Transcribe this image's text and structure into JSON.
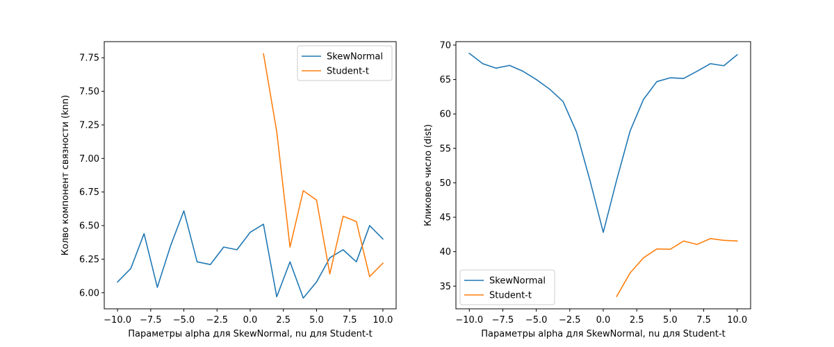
{
  "chart_data": [
    {
      "type": "line",
      "title": "",
      "xlabel": "Параметры alpha для SkewNormal, nu для Student-t",
      "ylabel": "Колво компонент связности (knn)",
      "xlim": [
        -11,
        11
      ],
      "ylim": [
        5.88,
        7.87
      ],
      "xticks": [
        -10,
        -7.5,
        -5,
        -2.5,
        0,
        2.5,
        5,
        7.5,
        10
      ],
      "xtick_labels": [
        "−10.0",
        "−7.5",
        "−5.0",
        "−2.5",
        "0.0",
        "2.5",
        "5.0",
        "7.5",
        "10.0"
      ],
      "yticks": [
        6.0,
        6.25,
        6.5,
        6.75,
        7.0,
        7.25,
        7.5,
        7.75
      ],
      "ytick_labels": [
        "6.00",
        "6.25",
        "6.50",
        "6.75",
        "7.00",
        "7.25",
        "7.50",
        "7.75"
      ],
      "grid": false,
      "legend_position": "top-right",
      "series": [
        {
          "name": "SkewNormal",
          "color": "#1f77b4",
          "x": [
            -10,
            -9,
            -8,
            -7,
            -6,
            -5,
            -4,
            -3,
            -2,
            -1,
            0,
            1,
            2,
            3,
            4,
            5,
            6,
            7,
            8,
            9,
            10
          ],
          "y": [
            6.08,
            6.18,
            6.44,
            6.04,
            6.35,
            6.61,
            6.23,
            6.21,
            6.34,
            6.32,
            6.45,
            6.51,
            5.97,
            6.23,
            5.96,
            6.08,
            6.26,
            6.32,
            6.23,
            6.5,
            6.4
          ]
        },
        {
          "name": "Student-t",
          "color": "#ff7f0e",
          "x": [
            1,
            2,
            3,
            4,
            5,
            6,
            7,
            8,
            9,
            10
          ],
          "y": [
            7.78,
            7.2,
            6.34,
            6.76,
            6.69,
            6.14,
            6.57,
            6.53,
            6.12,
            6.22
          ]
        }
      ]
    },
    {
      "type": "line",
      "title": "",
      "xlabel": "Параметры alpha для SkewNormal, nu для Student-t",
      "ylabel": "Кликовое число (dist)",
      "xlim": [
        -11,
        11
      ],
      "ylim": [
        31.7,
        70.5
      ],
      "xticks": [
        -10,
        -7.5,
        -5,
        -2.5,
        0,
        2.5,
        5,
        7.5,
        10
      ],
      "xtick_labels": [
        "−10.0",
        "−7.5",
        "−5.0",
        "−2.5",
        "0.0",
        "2.5",
        "5.0",
        "7.5",
        "10.0"
      ],
      "yticks": [
        35,
        40,
        45,
        50,
        55,
        60,
        65,
        70
      ],
      "ytick_labels": [
        "35",
        "40",
        "45",
        "50",
        "55",
        "60",
        "65",
        "70"
      ],
      "grid": false,
      "legend_position": "bottom-left",
      "series": [
        {
          "name": "SkewNormal",
          "color": "#1f77b4",
          "x": [
            -10,
            -9,
            -8,
            -7,
            -6,
            -5,
            -4,
            -3,
            -2,
            -1,
            0,
            1,
            2,
            3,
            4,
            5,
            6,
            7,
            8,
            9,
            10
          ],
          "y": [
            68.8,
            67.3,
            66.65,
            67.05,
            66.2,
            65.0,
            63.6,
            61.8,
            57.4,
            50.4,
            42.8,
            50.4,
            57.5,
            62.1,
            64.7,
            65.25,
            65.15,
            66.2,
            67.3,
            67.0,
            68.6
          ]
        },
        {
          "name": "Student-t",
          "color": "#ff7f0e",
          "x": [
            1,
            2,
            3,
            4,
            5,
            6,
            7,
            8,
            9,
            10
          ],
          "y": [
            33.5,
            36.9,
            39.1,
            40.4,
            40.35,
            41.55,
            41.05,
            41.9,
            41.65,
            41.55
          ]
        }
      ]
    }
  ]
}
